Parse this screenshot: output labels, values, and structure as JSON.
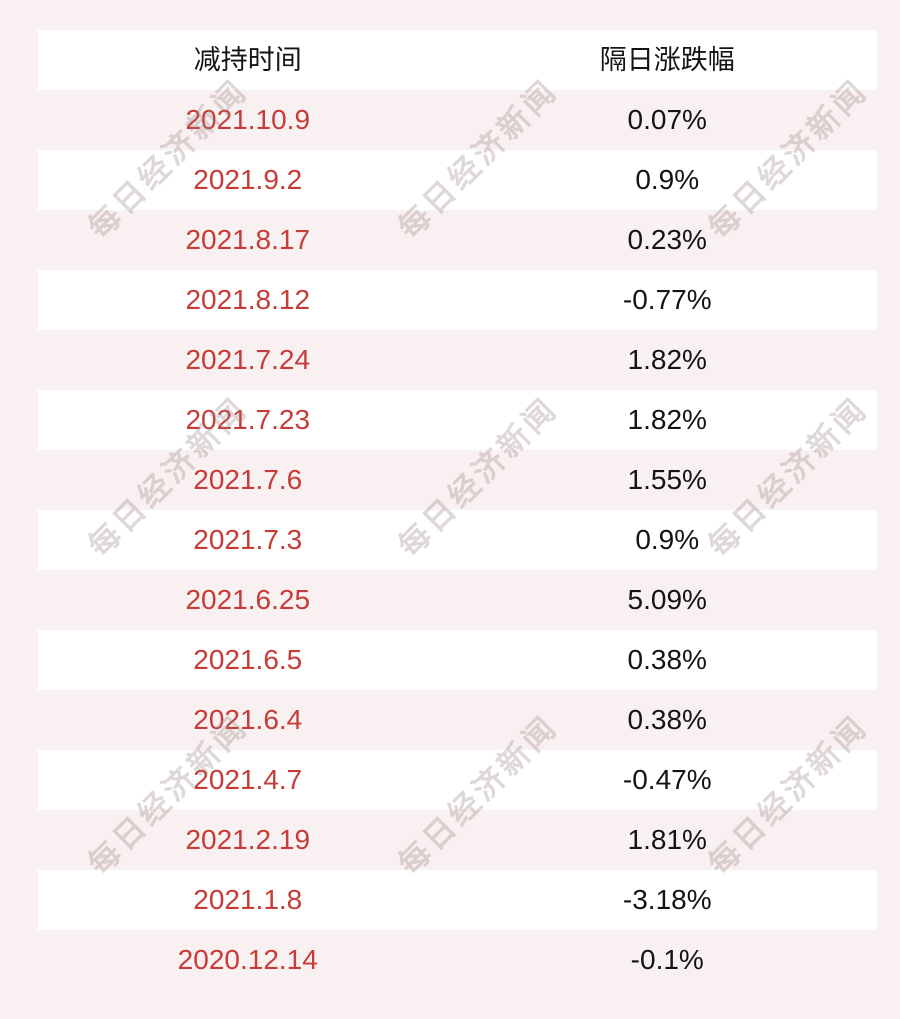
{
  "chart_data": {
    "type": "table",
    "columns": [
      "减持时间",
      "隔日涨跌幅"
    ],
    "rows": [
      [
        "2021.10.9",
        "0.07%"
      ],
      [
        "2021.9.2",
        "0.9%"
      ],
      [
        "2021.8.17",
        "0.23%"
      ],
      [
        "2021.8.12",
        "-0.77%"
      ],
      [
        "2021.7.24",
        "1.82%"
      ],
      [
        "2021.7.23",
        "1.82%"
      ],
      [
        "2021.7.6",
        "1.55%"
      ],
      [
        "2021.7.3",
        "0.9%"
      ],
      [
        "2021.6.25",
        "5.09%"
      ],
      [
        "2021.6.5",
        "0.38%"
      ],
      [
        "2021.6.4",
        "0.38%"
      ],
      [
        "2021.4.7",
        "-0.47%"
      ],
      [
        "2021.2.19",
        "1.81%"
      ],
      [
        "2021.1.8",
        "-3.18%"
      ],
      [
        "2020.12.14",
        "-0.1%"
      ]
    ]
  },
  "watermark": {
    "text": "每日经济新闻"
  },
  "colors": {
    "page_bg": "#f9f1f1",
    "row_white": "#ffffff",
    "date_red": "#c53c39",
    "text_dark": "#141414",
    "watermark": "rgba(154,133,133,0.32)"
  }
}
